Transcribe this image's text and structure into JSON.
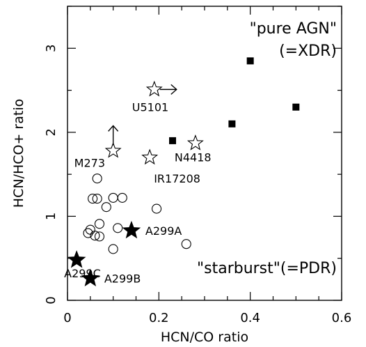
{
  "chart_data": {
    "type": "scatter",
    "xlabel": "HCN/CO ratio",
    "ylabel": "HCN/HCO+ ratio",
    "xlim": [
      0,
      0.6
    ],
    "ylim": [
      0,
      3.5
    ],
    "xticks": [
      0,
      0.2,
      0.4,
      0.6
    ],
    "yticks": [
      0,
      1,
      2,
      3
    ],
    "xtick_labels": [
      "0",
      "0.2",
      "0.4",
      "0.6"
    ],
    "ytick_labels": [
      "0",
      "1",
      "2",
      "3"
    ],
    "grid": false,
    "region_labels": [
      {
        "lines": [
          "\"pure AGN\"",
          "(=XDR)"
        ]
      },
      {
        "lines": [
          "\"starburst\"(=PDR)"
        ]
      }
    ],
    "series": [
      {
        "marker": "filled-square",
        "points": [
          {
            "x": 0.4,
            "y": 2.85
          },
          {
            "x": 0.5,
            "y": 2.3
          },
          {
            "x": 0.36,
            "y": 2.1
          },
          {
            "x": 0.23,
            "y": 1.9
          }
        ]
      },
      {
        "marker": "open-star",
        "points": [
          {
            "x": 0.19,
            "y": 2.51,
            "label": "U5101",
            "arrow": "right"
          },
          {
            "x": 0.1,
            "y": 1.78,
            "label": "M273",
            "arrow": "up"
          },
          {
            "x": 0.18,
            "y": 1.7,
            "label": "IR17208"
          },
          {
            "x": 0.28,
            "y": 1.87,
            "label": "N4418"
          }
        ]
      },
      {
        "marker": "filled-star",
        "points": [
          {
            "x": 0.14,
            "y": 0.83,
            "label": "A299A"
          },
          {
            "x": 0.02,
            "y": 0.48,
            "label": "A299C"
          },
          {
            "x": 0.05,
            "y": 0.26,
            "label": "A299B"
          }
        ]
      },
      {
        "marker": "open-circle",
        "points": [
          {
            "x": 0.065,
            "y": 1.45
          },
          {
            "x": 0.055,
            "y": 1.21
          },
          {
            "x": 0.065,
            "y": 1.21
          },
          {
            "x": 0.1,
            "y": 1.22
          },
          {
            "x": 0.12,
            "y": 1.22
          },
          {
            "x": 0.085,
            "y": 1.11
          },
          {
            "x": 0.195,
            "y": 1.09
          },
          {
            "x": 0.11,
            "y": 0.86
          },
          {
            "x": 0.07,
            "y": 0.91
          },
          {
            "x": 0.05,
            "y": 0.84
          },
          {
            "x": 0.045,
            "y": 0.8
          },
          {
            "x": 0.06,
            "y": 0.77
          },
          {
            "x": 0.07,
            "y": 0.76
          },
          {
            "x": 0.1,
            "y": 0.61
          },
          {
            "x": 0.26,
            "y": 0.67
          }
        ]
      }
    ]
  }
}
